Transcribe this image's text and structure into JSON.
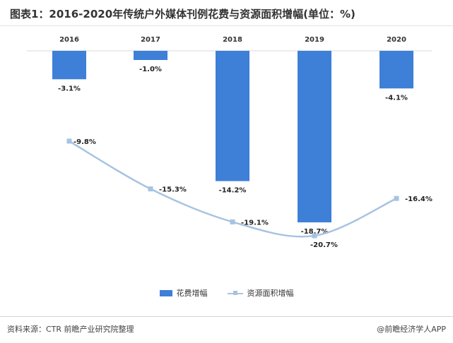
{
  "title": "图表1：2016-2020年传统户外媒体刊例花费与资源面积增幅(单位：%)",
  "source": "资料来源：CTR 前瞻产业研究院整理",
  "brand": "@前瞻经济学人APP",
  "colors": {
    "bar": "#3e7fd8",
    "line": "#a7c3e2"
  },
  "chart_data": {
    "type": "bar",
    "categories": [
      "2016",
      "2017",
      "2018",
      "2019",
      "2020"
    ],
    "series": [
      {
        "name": "花费增幅",
        "type": "bar",
        "values": [
          -3.1,
          -1.0,
          -14.2,
          -18.7,
          -4.1
        ],
        "labels": [
          "-3.1%",
          "-1.0%",
          "-14.2%",
          "-18.7%",
          "-4.1%"
        ]
      },
      {
        "name": "资源面积增幅",
        "type": "line",
        "values": [
          -9.8,
          -15.3,
          -19.1,
          -20.7,
          -16.4
        ],
        "labels": [
          "-9.8%",
          "-15.3%",
          "-19.1%",
          "-20.7%",
          "-16.4%"
        ]
      }
    ],
    "ylim": [
      -21,
      0
    ],
    "legend": "bottom",
    "grid": false
  }
}
